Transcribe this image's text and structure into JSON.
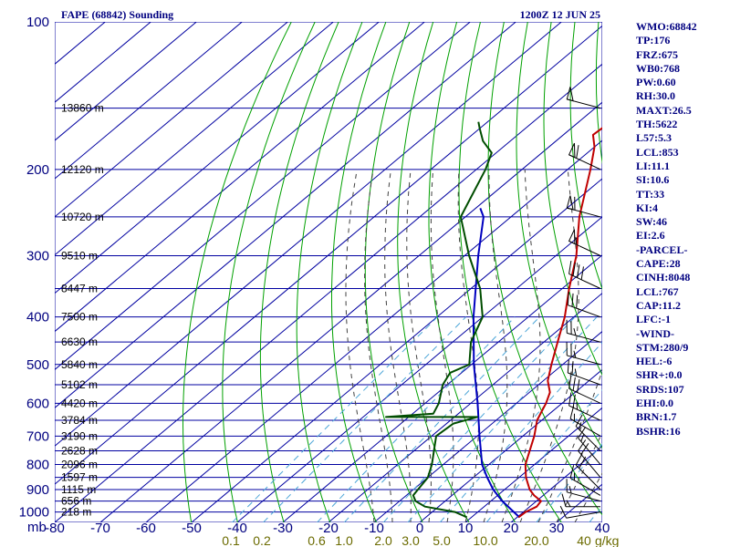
{
  "header": {
    "station": "FAPE (68842) Sounding",
    "time": "1200Z 12 JUN 25"
  },
  "indices": [
    "WMO:68842",
    "TP:176",
    "FRZ:675",
    "WB0:768",
    "PW:0.60",
    "RH:30.0",
    "MAXT:26.5",
    "TH:5622",
    "L57:5.3",
    "LCL:853",
    "LI:11.1",
    "SI:10.6",
    "TT:33",
    "KI:4",
    "SW:46",
    "EI:2.6",
    "-PARCEL-",
    "CAPE:28",
    "CINH:8048",
    "LCL:767",
    "CAP:11.2",
    "LFC:-1",
    "-WIND-",
    "STM:280/9",
    "HEL:-6",
    "SHR+:0.0",
    "SRDS:107",
    "EHI:0.0",
    "BRN:1.7",
    "BSHR:16"
  ],
  "colors": {
    "isobar": "#0000a0",
    "isotherm": "#0000a0",
    "dry_adiabat": "#00a000",
    "moist_adiabat": "#404040",
    "mixing_ratio": "#4da6d8",
    "temperature": "#c00000",
    "dewpoint": "#004d00",
    "parcel": "#0000c0",
    "wind": "#000000"
  },
  "chart_data": {
    "type": "skew-t log-p",
    "pressure_axis": {
      "unit": "mb",
      "ticks": [
        "100",
        "200",
        "300",
        "400",
        "500",
        "600",
        "700",
        "800",
        "900",
        "1000"
      ],
      "range": [
        100,
        1050
      ],
      "scale": "log"
    },
    "temperature_axis": {
      "ticks": [
        "-80",
        "-70",
        "-60",
        "-50",
        "-40",
        "-30",
        "-20",
        "-10",
        "0",
        "10",
        "20",
        "30",
        "40"
      ],
      "range": [
        -80,
        40
      ]
    },
    "mixing_ratio_axis": {
      "unit": "g/kg",
      "ticks": [
        "0.1",
        "0.2",
        "0.6",
        "1.0",
        "2.0",
        "3.0",
        "5.0",
        "10.0",
        "20.0",
        "40"
      ]
    },
    "height_labels": [
      {
        "p": 1000,
        "text": "218 m"
      },
      {
        "p": 950,
        "text": "656 m"
      },
      {
        "p": 900,
        "text": "1115 m"
      },
      {
        "p": 850,
        "text": "1597 m"
      },
      {
        "p": 800,
        "text": "2096 m"
      },
      {
        "p": 750,
        "text": "2628 m"
      },
      {
        "p": 700,
        "text": "3190 m"
      },
      {
        "p": 650,
        "text": "3784 m"
      },
      {
        "p": 600,
        "text": "4420 m"
      },
      {
        "p": 550,
        "text": "5102 m"
      },
      {
        "p": 500,
        "text": "5840 m"
      },
      {
        "p": 450,
        "text": "6630 m"
      },
      {
        "p": 400,
        "text": "7500 m"
      },
      {
        "p": 350,
        "text": "8447 m"
      },
      {
        "p": 300,
        "text": "9510 m"
      },
      {
        "p": 250,
        "text": "10720 m"
      },
      {
        "p": 200,
        "text": "12120 m"
      },
      {
        "p": 150,
        "text": "13860 m"
      }
    ],
    "temperature": [
      [
        1025,
        20.3
      ],
      [
        1000,
        20.5
      ],
      [
        975,
        21.5
      ],
      [
        950,
        21.0
      ],
      [
        925,
        18.0
      ],
      [
        900,
        15.5
      ],
      [
        850,
        11.5
      ],
      [
        800,
        8.0
      ],
      [
        700,
        2.5
      ],
      [
        650,
        -1.0
      ],
      [
        620,
        -2.5
      ],
      [
        600,
        -3.5
      ],
      [
        570,
        -5.5
      ],
      [
        540,
        -9.0
      ],
      [
        500,
        -12.5
      ],
      [
        450,
        -17.0
      ],
      [
        400,
        -22.0
      ],
      [
        350,
        -28.5
      ],
      [
        300,
        -35.5
      ],
      [
        250,
        -45.0
      ],
      [
        200,
        -55.0
      ],
      [
        180,
        -60.0
      ],
      [
        170,
        -63.5
      ],
      [
        160,
        -63.0
      ],
      [
        150,
        -62.0
      ],
      [
        140,
        -64.0
      ],
      [
        130,
        -62.5
      ],
      [
        120,
        -65.5
      ],
      [
        115,
        -64.0
      ]
    ],
    "dewpoint": [
      [
        1025,
        9.0
      ],
      [
        1000,
        5.0
      ],
      [
        975,
        -3.0
      ],
      [
        950,
        -6.5
      ],
      [
        925,
        -8.5
      ],
      [
        900,
        -9.0
      ],
      [
        850,
        -10.0
      ],
      [
        800,
        -12.5
      ],
      [
        700,
        -19.0
      ],
      [
        660,
        -18.5
      ],
      [
        640,
        -15.0
      ],
      [
        640,
        -35.0
      ],
      [
        630,
        -25.5
      ],
      [
        600,
        -27.0
      ],
      [
        550,
        -31.0
      ],
      [
        520,
        -32.5
      ],
      [
        500,
        -30.5
      ],
      [
        450,
        -36.0
      ],
      [
        400,
        -40.0
      ],
      [
        350,
        -48.0
      ],
      [
        300,
        -59.0
      ],
      [
        250,
        -71.0
      ],
      [
        200,
        -78.0
      ],
      [
        185,
        -81.0
      ],
      [
        175,
        -86.0
      ],
      [
        165,
        -90.0
      ],
      [
        160,
        -92.0
      ]
    ],
    "parcel": [
      [
        1025,
        20.5
      ],
      [
        950,
        12.5
      ],
      [
        900,
        7.5
      ],
      [
        850,
        3.0
      ],
      [
        800,
        -1.5
      ],
      [
        700,
        -9.5
      ],
      [
        600,
        -18.5
      ],
      [
        500,
        -29.5
      ],
      [
        400,
        -42.0
      ],
      [
        300,
        -57.0
      ],
      [
        250,
        -66.0
      ],
      [
        240,
        -69.0
      ]
    ],
    "wind": [
      {
        "p": 1000,
        "dir": 260,
        "kt": 10
      },
      {
        "p": 975,
        "dir": 270,
        "kt": 15
      },
      {
        "p": 950,
        "dir": 285,
        "kt": 15
      },
      {
        "p": 925,
        "dir": 300,
        "kt": 15
      },
      {
        "p": 900,
        "dir": 315,
        "kt": 20
      },
      {
        "p": 850,
        "dir": 320,
        "kt": 20
      },
      {
        "p": 800,
        "dir": 320,
        "kt": 15
      },
      {
        "p": 750,
        "dir": 315,
        "kt": 15
      },
      {
        "p": 700,
        "dir": 300,
        "kt": 15
      },
      {
        "p": 650,
        "dir": 295,
        "kt": 25
      },
      {
        "p": 600,
        "dir": 295,
        "kt": 30
      },
      {
        "p": 550,
        "dir": 290,
        "kt": 25
      },
      {
        "p": 500,
        "dir": 285,
        "kt": 25
      },
      {
        "p": 450,
        "dir": 285,
        "kt": 25
      },
      {
        "p": 400,
        "dir": 290,
        "kt": 30
      },
      {
        "p": 350,
        "dir": 295,
        "kt": 40
      },
      {
        "p": 300,
        "dir": 295,
        "kt": 55
      },
      {
        "p": 250,
        "dir": 285,
        "kt": 60
      },
      {
        "p": 200,
        "dir": 295,
        "kt": 60
      },
      {
        "p": 150,
        "dir": 285,
        "kt": 50
      }
    ]
  }
}
